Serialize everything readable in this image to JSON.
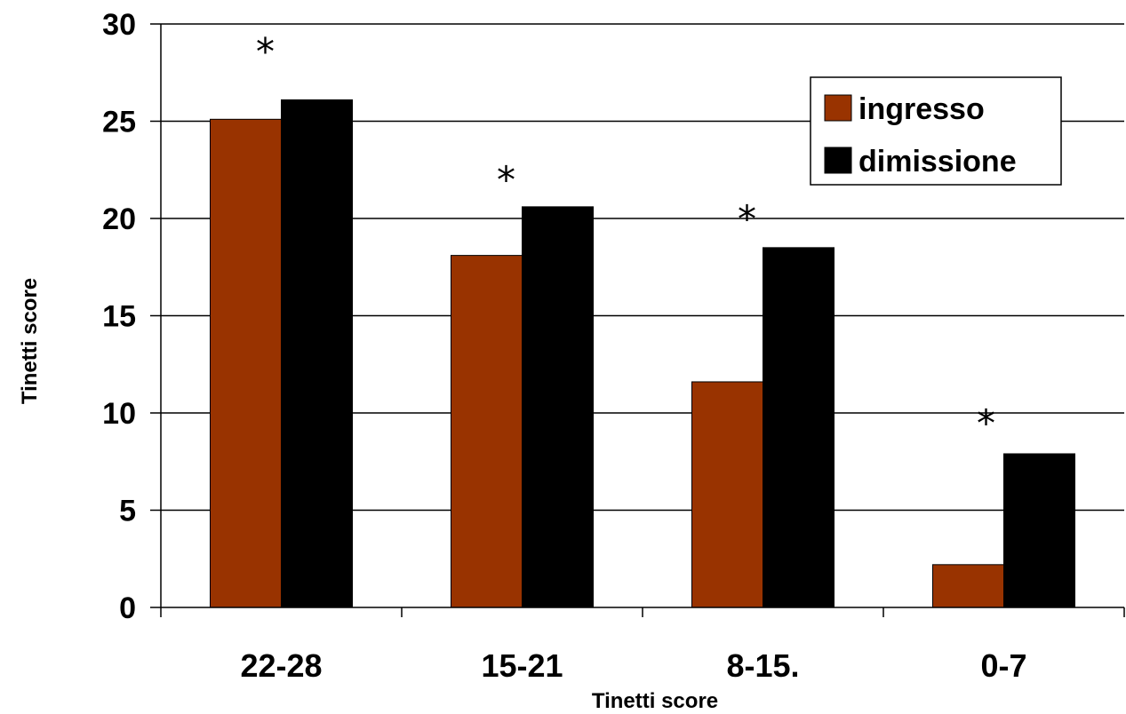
{
  "chart_data": {
    "type": "bar",
    "categories": [
      "22-28",
      "15-21",
      "8-15.",
      "0-7"
    ],
    "series": [
      {
        "name": "ingresso",
        "values": [
          25.1,
          18.1,
          11.6,
          2.2
        ],
        "color": "#993300"
      },
      {
        "name": "dimissione",
        "values": [
          26.1,
          20.6,
          18.5,
          7.9
        ],
        "color": "#000000"
      }
    ],
    "annotations": [
      "*",
      "*",
      "*",
      "*"
    ],
    "xlabel": "Tinetti score",
    "ylabel": "Tinetti score",
    "ylim": [
      0,
      30
    ],
    "yticks": [
      0,
      5,
      10,
      15,
      20,
      25,
      30
    ],
    "grid": true,
    "legend_position": "top-right"
  }
}
